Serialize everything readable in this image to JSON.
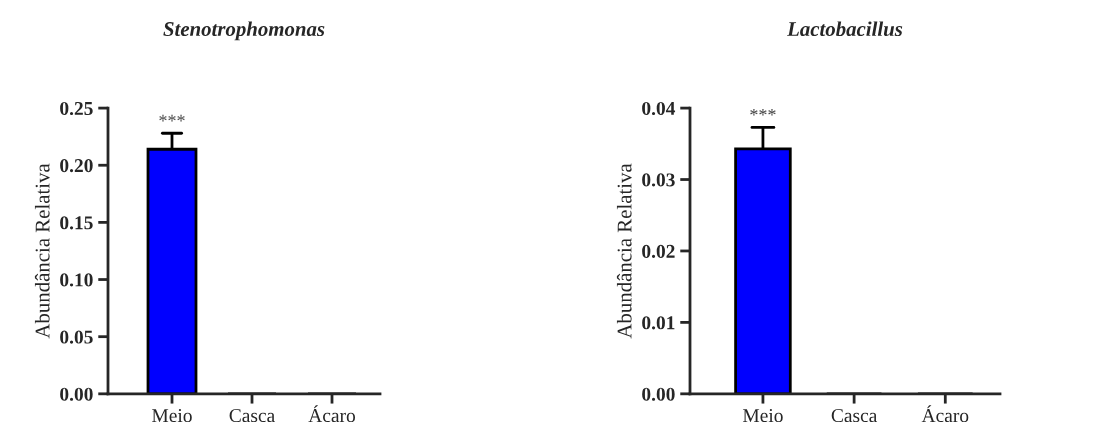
{
  "chart_data": [
    {
      "type": "bar",
      "title": "Stenotrophomonas",
      "ylabel": "Abundância Relativa",
      "categories": [
        "Meio",
        "Casca",
        "Ácaro"
      ],
      "values": [
        0.214,
        0,
        0
      ],
      "errors": [
        [
          0.214,
          0.228
        ],
        null,
        null
      ],
      "color": "#0000ff",
      "ylim": [
        0,
        0.25
      ],
      "yticks": [
        {
          "value": 0,
          "label": "0.00"
        },
        {
          "value": 0.05,
          "label": "0.05"
        },
        {
          "value": 0.1,
          "label": "0.10"
        },
        {
          "value": 0.15,
          "label": "0.15"
        },
        {
          "value": 0.2,
          "label": "0.20"
        },
        {
          "value": 0.25,
          "label": "0.25"
        }
      ],
      "annotations": [
        {
          "text": "***",
          "x": "Meio",
          "y": 0.228
        }
      ],
      "grid": false
    },
    {
      "type": "bar",
      "title": "Lactobacillus",
      "ylabel": "Abundância Relativa",
      "categories": [
        "Meio",
        "Casca",
        "Ácaro"
      ],
      "values": [
        0.0343,
        0,
        0
      ],
      "errors": [
        [
          0.0343,
          0.0373
        ],
        null,
        null
      ],
      "color": "#0000ff",
      "ylim": [
        0,
        0.04
      ],
      "yticks": [
        {
          "value": 0,
          "label": "0.00"
        },
        {
          "value": 0.01,
          "label": "0.01"
        },
        {
          "value": 0.02,
          "label": "0.02"
        },
        {
          "value": 0.03,
          "label": "0.03"
        },
        {
          "value": 0.04,
          "label": "0.04"
        }
      ],
      "annotations": [
        {
          "text": "***",
          "x": "Meio",
          "y": 0.0373
        }
      ],
      "grid": false
    }
  ]
}
